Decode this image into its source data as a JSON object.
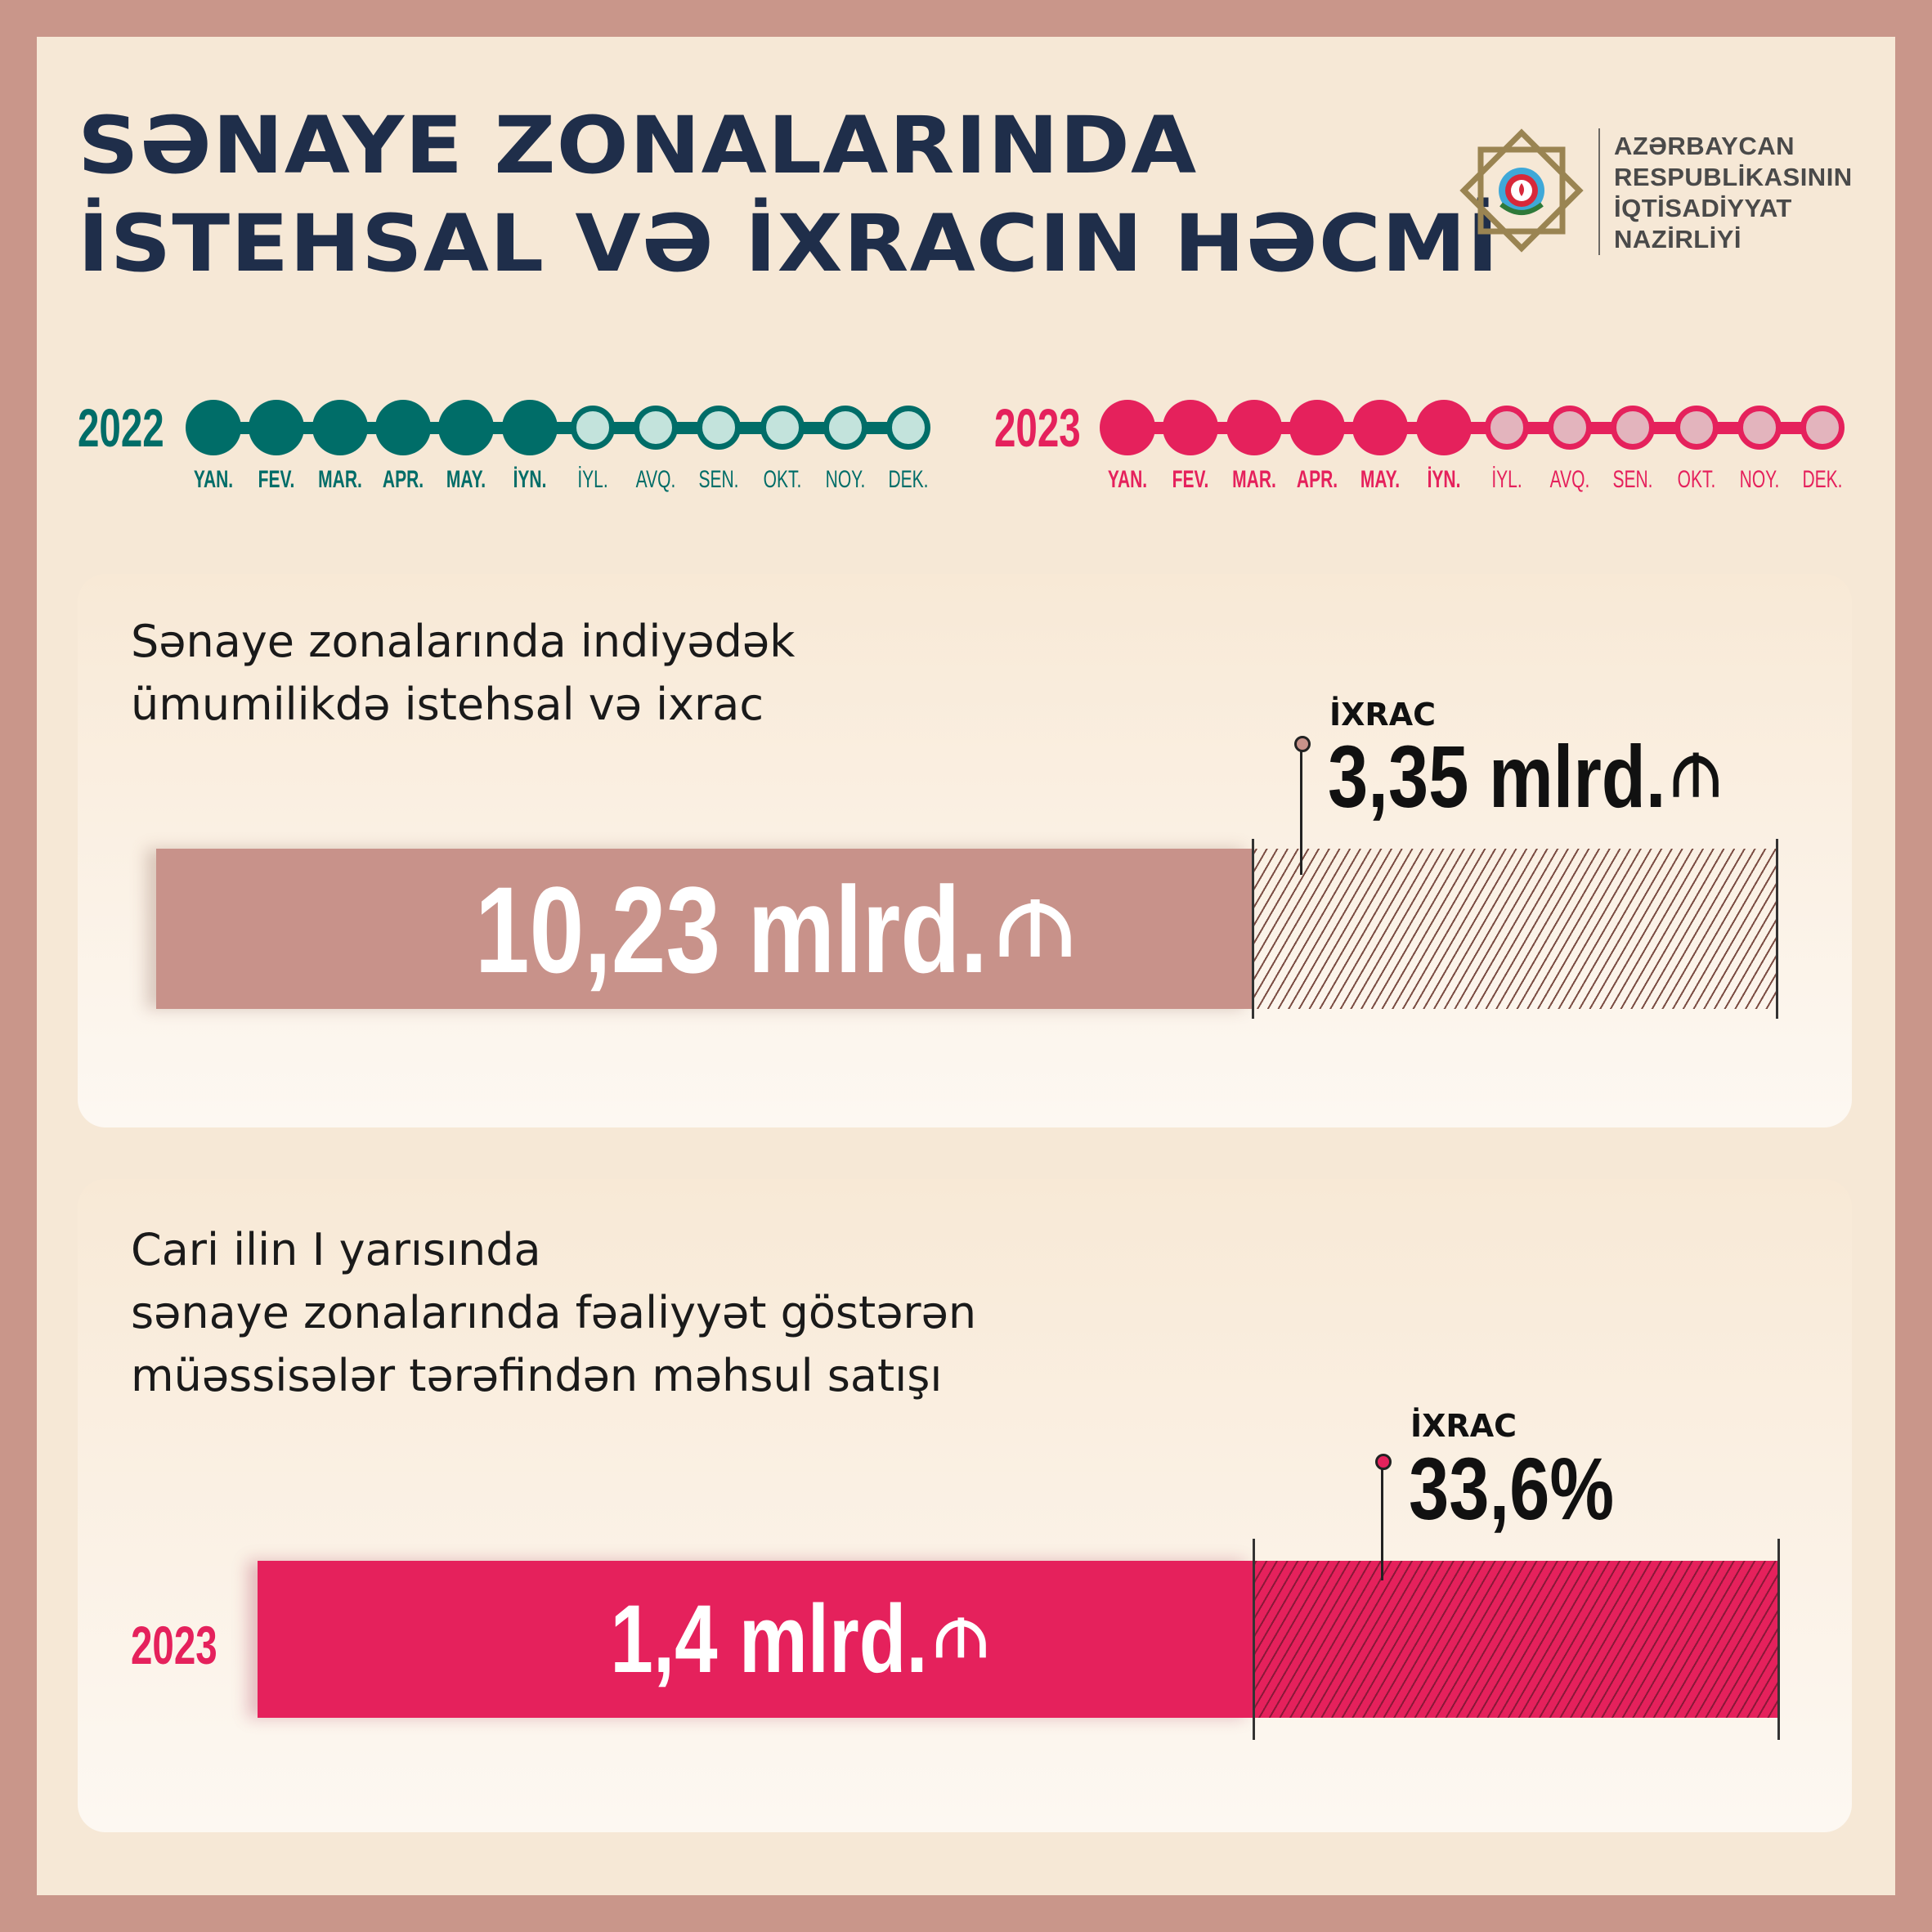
{
  "title": {
    "line1": "SƏNAYE ZONALARINDA",
    "line2": "İSTEHSAL VƏ İXRACIN HƏCMİ"
  },
  "logo": {
    "line1": "AZƏRBAYCAN",
    "line2": "RESPUBLİKASININ",
    "line3": "İQTİSADİYYAT",
    "line4": "NAZİRLİYİ"
  },
  "timelines": [
    {
      "year": "2022",
      "color": "#006d68",
      "light": "#c3e3dc",
      "filled_months": 6,
      "months": [
        "YAN.",
        "FEV.",
        "MAR.",
        "APR.",
        "MAY.",
        "İYN.",
        "İYL.",
        "AVQ.",
        "SEN.",
        "OKT.",
        "NOY.",
        "DEK."
      ]
    },
    {
      "year": "2023",
      "color": "#e5215c",
      "light": "#e3b4bd",
      "filled_months": 6,
      "months": [
        "YAN.",
        "FEV.",
        "MAR.",
        "APR.",
        "MAY.",
        "İYN.",
        "İYL.",
        "AVQ.",
        "SEN.",
        "OKT.",
        "NOY.",
        "DEK."
      ]
    }
  ],
  "card1": {
    "heading_line1": "Sənaye zonalarında indiyədək",
    "heading_line2": "ümumilikdə istehsal və ixrac",
    "total": "10,23 mlrd.",
    "export_label": "İXRAC",
    "export_value": "3,35 mlrd.",
    "currency_icon": "manat-icon",
    "color": "#c8928a"
  },
  "card2": {
    "heading_line1": "Cari ilin I yarısında",
    "heading_line2": "sənaye zonalarında fəaliyyət göstərən",
    "heading_line3": "müəssisələr tərəfindən məhsul satışı",
    "year": "2023",
    "total": "1,4 mlrd.",
    "export_label": "İXRAC",
    "export_value": "33,6%",
    "currency_icon": "manat-icon",
    "color": "#e5215c"
  }
}
